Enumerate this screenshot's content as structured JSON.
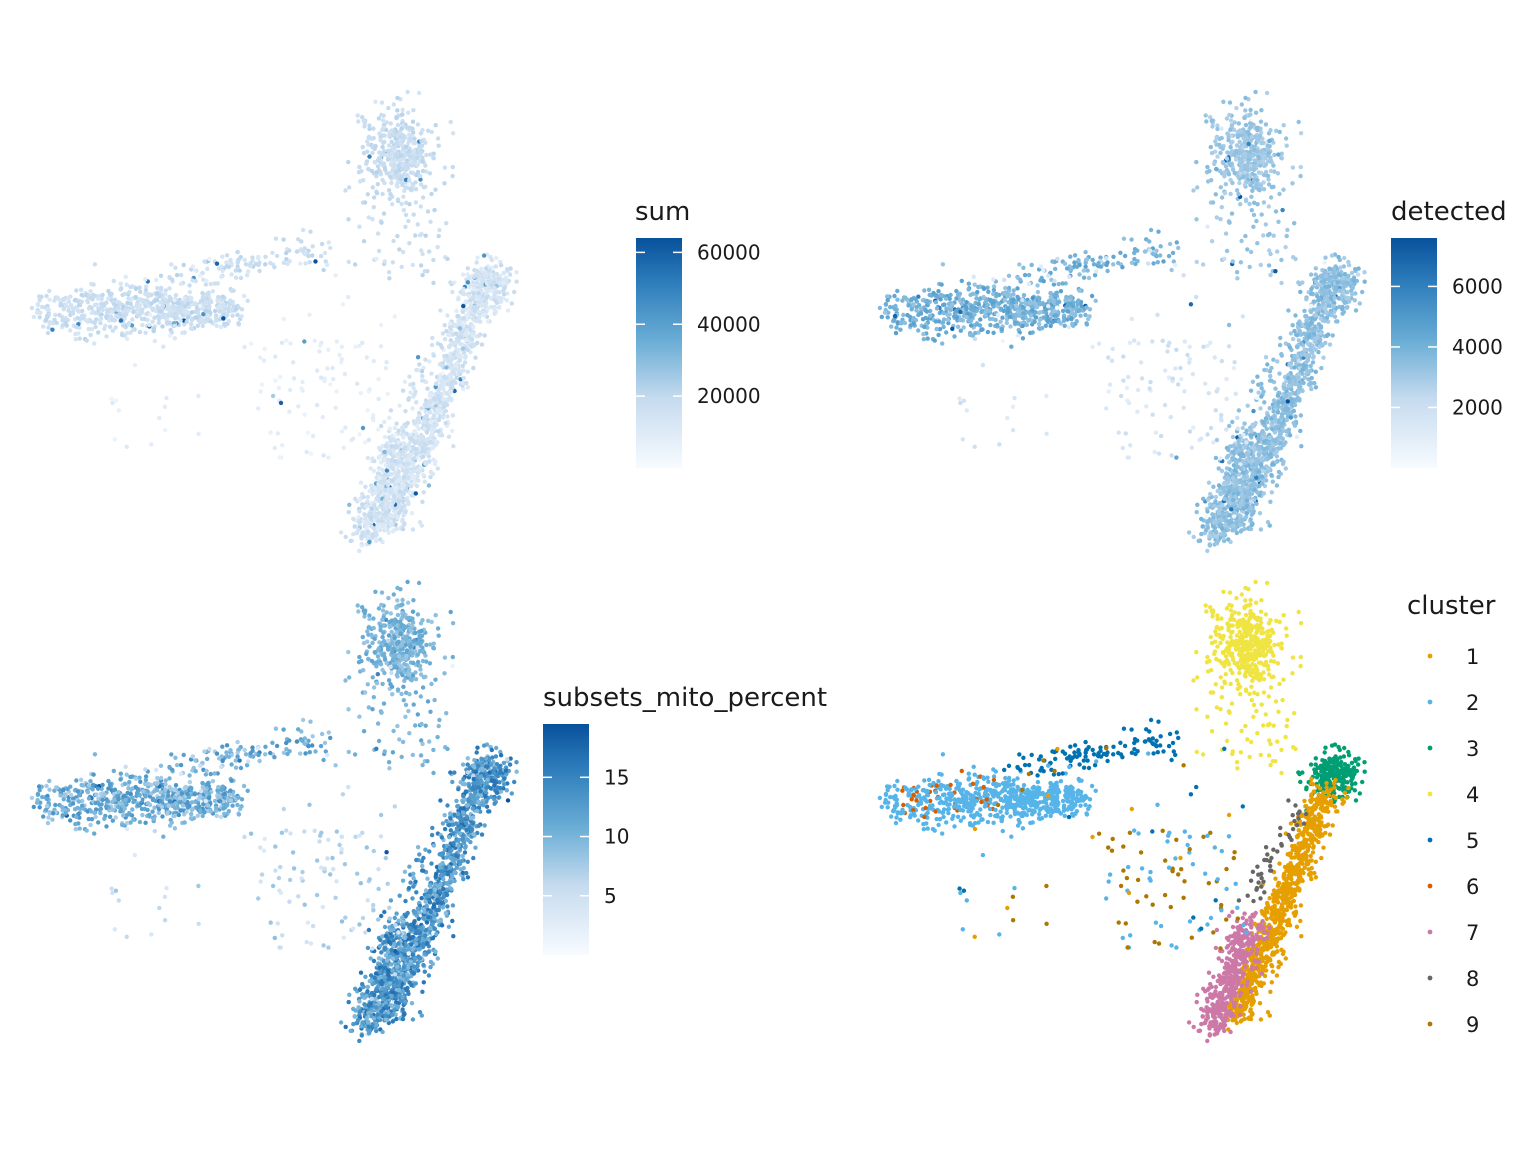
{
  "chart_data": [
    {
      "type": "scatter",
      "panel": "top-left",
      "color_by": "sum",
      "legend": {
        "title": "sum",
        "kind": "colorbar",
        "placement": "right",
        "ticks": [
          20000,
          40000,
          60000
        ],
        "tick_labels": [
          "20000",
          "40000",
          "60000"
        ],
        "range": [
          0,
          64000
        ],
        "low_color": "#f7fbff",
        "high_color": "#08519c"
      },
      "axes": "none",
      "grid": false,
      "regions": [
        {
          "arm": "left",
          "value_range": [
            12000,
            22000
          ]
        },
        {
          "arm": "top",
          "value_range": [
            14000,
            22000
          ]
        },
        {
          "arm": "right",
          "value_range": [
            8000,
            20000
          ]
        },
        {
          "arm": "center",
          "value_range": [
            4000,
            12000
          ]
        }
      ]
    },
    {
      "type": "scatter",
      "panel": "top-right",
      "color_by": "detected",
      "legend": {
        "title": "detected",
        "kind": "colorbar",
        "placement": "right",
        "ticks": [
          2000,
          4000,
          6000
        ],
        "tick_labels": [
          "2000",
          "4000",
          "6000"
        ],
        "range": [
          0,
          7600
        ],
        "low_color": "#f7fbff",
        "high_color": "#08519c"
      },
      "axes": "none",
      "grid": false,
      "regions": [
        {
          "arm": "left",
          "value_range": [
            3200,
            4800
          ]
        },
        {
          "arm": "top",
          "value_range": [
            2600,
            3600
          ]
        },
        {
          "arm": "right",
          "value_range": [
            2800,
            4000
          ]
        },
        {
          "arm": "center",
          "value_range": [
            900,
            2200
          ]
        }
      ]
    },
    {
      "type": "scatter",
      "panel": "bottom-left",
      "color_by": "subsets_mito_percent",
      "legend": {
        "title": "subsets_mito_percent",
        "kind": "colorbar",
        "placement": "right",
        "ticks": [
          5,
          10,
          15
        ],
        "tick_labels": [
          "5",
          "10",
          "15"
        ],
        "range": [
          0,
          19.5
        ],
        "low_color": "#f7fbff",
        "high_color": "#08519c"
      },
      "axes": "none",
      "grid": false,
      "regions": [
        {
          "arm": "left",
          "value_range": [
            7,
            14
          ]
        },
        {
          "arm": "top",
          "value_range": [
            8,
            12
          ]
        },
        {
          "arm": "right",
          "value_range": [
            9,
            17
          ]
        },
        {
          "arm": "center",
          "value_range": [
            3,
            9
          ]
        }
      ]
    },
    {
      "type": "scatter",
      "panel": "bottom-right",
      "color_by": "cluster",
      "legend": {
        "title": "cluster",
        "kind": "categorical",
        "placement": "right"
      },
      "axes": "none",
      "grid": false,
      "series": [
        {
          "name": "1",
          "color": "#E69F00"
        },
        {
          "name": "2",
          "color": "#56B4E9"
        },
        {
          "name": "3",
          "color": "#009E73"
        },
        {
          "name": "4",
          "color": "#F0E442"
        },
        {
          "name": "5",
          "color": "#0072B2"
        },
        {
          "name": "6",
          "color": "#D55E00"
        },
        {
          "name": "7",
          "color": "#CC79A7"
        },
        {
          "name": "8",
          "color": "#666666"
        },
        {
          "name": "9",
          "color": "#AD7700"
        }
      ]
    }
  ]
}
